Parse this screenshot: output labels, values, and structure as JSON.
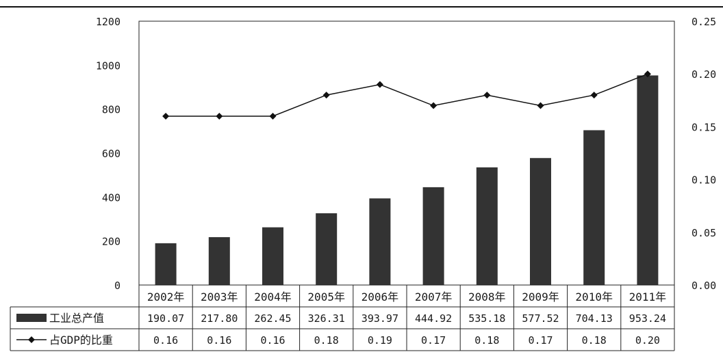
{
  "chart_data": {
    "type": "bar",
    "categories": [
      "2002年",
      "2003年",
      "2004年",
      "2005年",
      "2006年",
      "2007年",
      "2008年",
      "2009年",
      "2010年",
      "2011年"
    ],
    "series": [
      {
        "name": "工业总产值",
        "type": "bar",
        "axis": "left",
        "values": [
          190.07,
          217.8,
          262.45,
          326.31,
          393.97,
          444.92,
          535.18,
          577.52,
          704.13,
          953.24
        ],
        "labels": [
          "190.07",
          "217.80",
          "262.45",
          "326.31",
          "393.97",
          "444.92",
          "535.18",
          "577.52",
          "704.13",
          "953.24"
        ]
      },
      {
        "name": "占GDP的比重",
        "type": "line",
        "axis": "right",
        "values": [
          0.16,
          0.16,
          0.16,
          0.18,
          0.19,
          0.17,
          0.18,
          0.17,
          0.18,
          0.2
        ],
        "labels": [
          "0.16",
          "0.16",
          "0.16",
          "0.18",
          "0.19",
          "0.17",
          "0.18",
          "0.17",
          "0.18",
          "0.20"
        ]
      }
    ],
    "ylim": [
      0,
      1200
    ],
    "y_ticks": [
      "0",
      "200",
      "400",
      "600",
      "800",
      "1000",
      "1200"
    ],
    "y2lim": [
      0,
      0.25
    ],
    "y2_ticks": [
      "0.00",
      "0.05",
      "0.10",
      "0.15",
      "0.20",
      "0.25"
    ],
    "grid": false,
    "legend": "data-table-left",
    "colors": {
      "bar": "#333333",
      "line": "#111111",
      "marker": "#111111"
    }
  }
}
